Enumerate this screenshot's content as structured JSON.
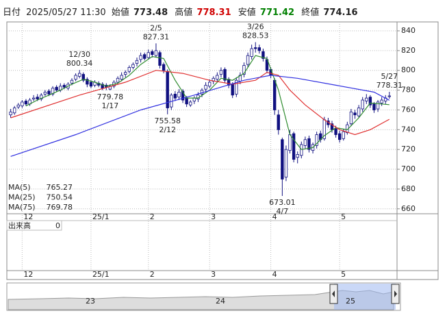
{
  "header": {
    "date_label": "日付",
    "datetime": "2025/05/27 11:30",
    "open_label": "始値",
    "open": 773.48,
    "high_label": "高値",
    "high": 778.31,
    "low_label": "安値",
    "low": 771.42,
    "close_label": "終値",
    "close": 774.16
  },
  "chart_data": {
    "type": "candlestick",
    "ylim": [
      655,
      849
    ],
    "yticks": [
      660,
      680,
      700,
      720,
      740,
      760,
      780,
      800,
      820,
      840
    ],
    "xlim": [
      -1,
      101
    ],
    "xticks": [
      {
        "value": 3,
        "label": "12"
      },
      {
        "value": 21,
        "label": "25/1"
      },
      {
        "value": 36,
        "label": "2"
      },
      {
        "value": 52,
        "label": "3"
      },
      {
        "value": 68,
        "label": "4"
      },
      {
        "value": 86,
        "label": "5"
      }
    ],
    "grid": true,
    "up_color": "#ffffff",
    "down_color": "#101080",
    "edge_color": "#101080",
    "open": [
      755,
      757,
      763,
      764,
      769,
      766,
      771,
      773,
      771,
      776,
      779,
      776,
      783,
      780,
      785,
      782,
      787,
      791,
      794,
      796,
      791,
      788,
      785,
      787,
      786,
      785,
      781,
      784,
      788,
      791,
      796,
      799,
      803,
      807,
      811,
      816,
      813,
      819,
      815,
      818,
      806,
      799,
      763,
      776,
      773,
      779,
      772,
      765,
      769,
      771,
      776,
      781,
      784,
      789,
      791,
      796,
      801,
      791,
      786,
      776,
      789,
      796,
      806,
      814,
      823,
      823,
      819,
      811,
      801,
      790,
      755,
      730,
      692,
      719,
      736,
      712,
      714,
      724,
      731,
      719,
      724,
      736,
      731,
      749,
      746,
      741,
      736,
      731,
      737,
      746,
      757,
      754,
      761,
      769,
      773,
      766,
      761,
      767,
      769,
      773.48
    ],
    "high": [
      761,
      764,
      767,
      770,
      771,
      772,
      775,
      776,
      777,
      780,
      781,
      784,
      785,
      787,
      787,
      788,
      792,
      797,
      800.34,
      798,
      793,
      790,
      790,
      789,
      788,
      787,
      786,
      790,
      794,
      798,
      800,
      805,
      808,
      813,
      818,
      818,
      821,
      821,
      827.31,
      820,
      808,
      801,
      777,
      779,
      781,
      781,
      774,
      770,
      774,
      778,
      782,
      788,
      791,
      794,
      798,
      803,
      803,
      793,
      788,
      793,
      798,
      808,
      818,
      826,
      828.53,
      826,
      822,
      814,
      803,
      792,
      760,
      732,
      724,
      740,
      738,
      718,
      728,
      733,
      734,
      727,
      738,
      739,
      753,
      752,
      749,
      744,
      739,
      741,
      748,
      761,
      760,
      765,
      773,
      776,
      775,
      768,
      770,
      773,
      775,
      778.31
    ],
    "low": [
      752,
      755,
      761,
      762,
      764,
      764,
      769,
      769,
      769,
      774,
      774,
      774,
      778,
      778,
      781,
      780,
      785,
      789,
      792,
      788,
      783,
      782,
      783,
      783,
      780,
      780,
      779.78,
      782,
      786,
      789,
      793,
      797,
      801,
      804,
      808,
      810,
      811,
      813,
      813,
      802,
      797,
      755.58,
      760,
      769,
      770,
      767,
      763,
      763,
      766,
      768,
      773,
      778,
      782,
      786,
      788,
      793,
      787,
      782,
      772,
      773,
      786,
      793,
      803,
      811,
      818,
      817,
      809,
      797,
      792,
      755,
      735,
      673.01,
      688,
      716,
      707,
      706,
      711,
      721,
      717,
      716,
      721,
      727,
      729,
      742,
      737,
      732,
      727,
      729,
      735,
      744,
      751,
      752,
      758,
      766,
      762,
      757,
      758,
      764,
      766,
      771.42
    ],
    "close": [
      758,
      762,
      765,
      768,
      766,
      770,
      772,
      771,
      775,
      778,
      776,
      782,
      780,
      784,
      783,
      786,
      790,
      795,
      797,
      790,
      786,
      784,
      788,
      785,
      782,
      783,
      784,
      788,
      792,
      795,
      798,
      803,
      806,
      810,
      815,
      812,
      818,
      816,
      820,
      805,
      800,
      762,
      775,
      772,
      778,
      770,
      766,
      768,
      772,
      775,
      780,
      785,
      788,
      792,
      795,
      800,
      790,
      785,
      775,
      790,
      795,
      805,
      815,
      822,
      822,
      820,
      812,
      800,
      795,
      760,
      740,
      690,
      720,
      735,
      710,
      715,
      725,
      730,
      720,
      725,
      735,
      730,
      750,
      745,
      740,
      735,
      730,
      738,
      745,
      758,
      755,
      762,
      770,
      772,
      765,
      760,
      768,
      770,
      772,
      774.16
    ],
    "series": [
      {
        "name": "MA(5)",
        "color": "#2e8b2e",
        "legend_value": 765.27,
        "x": [
          4,
          7,
          10,
          13,
          16,
          19,
          22,
          25,
          28,
          31,
          34,
          37,
          40,
          43,
          46,
          49,
          52,
          55,
          58,
          61,
          64,
          67,
          70,
          73,
          76,
          79,
          82,
          85,
          88,
          91,
          94,
          97,
          99
        ],
        "values": [
          764,
          770,
          775,
          780,
          786,
          791,
          788,
          784,
          787,
          795,
          806,
          814,
          812,
          790,
          772,
          772,
          780,
          792,
          790,
          797,
          815,
          812,
          780,
          735,
          720,
          722,
          734,
          742,
          740,
          752,
          767,
          766,
          765.27
        ]
      },
      {
        "name": "MA(25)",
        "color": "#e03030",
        "legend_value": 750.54,
        "x": [
          0,
          18,
          30,
          38,
          45,
          52,
          58,
          64,
          67,
          70,
          73,
          77,
          82,
          86,
          90,
          94,
          99
        ],
        "values": [
          752,
          775,
          788,
          800,
          797,
          790,
          786,
          790,
          798,
          795,
          780,
          765,
          750,
          740,
          735,
          740,
          750.54
        ]
      },
      {
        "name": "MA(75)",
        "color": "#3030e0",
        "legend_value": 769.78,
        "x": [
          0,
          17,
          34,
          48,
          61,
          68,
          75,
          85,
          95,
          99
        ],
        "values": [
          713,
          735,
          760,
          775,
          790,
          795,
          792,
          785,
          778,
          769.78
        ]
      }
    ],
    "annotations": [
      {
        "x": 18,
        "date": "12/30",
        "value": 800.34,
        "position": "above"
      },
      {
        "x": 26,
        "date": "1/17",
        "value": 779.78,
        "position": "below"
      },
      {
        "x": 38,
        "date": "2/5",
        "value": 827.31,
        "position": "above"
      },
      {
        "x": 41,
        "date": "2/12",
        "value": 755.58,
        "position": "below"
      },
      {
        "x": 64,
        "date": "3/26",
        "value": 828.53,
        "position": "above"
      },
      {
        "x": 71,
        "date": "4/7",
        "value": 673.01,
        "position": "below"
      },
      {
        "x": 99,
        "date": "5/27",
        "value": 778.31,
        "position": "above"
      }
    ],
    "volume_label": "出来高",
    "volume_value": 0,
    "navigator_labels": [
      "23",
      "24",
      "25"
    ]
  }
}
